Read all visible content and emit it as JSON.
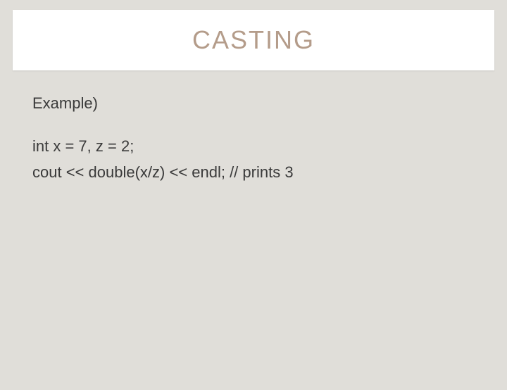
{
  "slide": {
    "title": "CASTING",
    "title_color": "#b49c8a",
    "title_fontsize": 36,
    "title_letter_spacing": 2,
    "background_color": "#e0ded9",
    "title_box_bg": "#ffffff",
    "body_text_color": "#3a3a3a",
    "body_fontsize": 22,
    "lines": {
      "l0": "Example)",
      "l1": "int x = 7, z = 2;",
      "l2": "cout << double(x/z) << endl;  // prints 3"
    }
  }
}
